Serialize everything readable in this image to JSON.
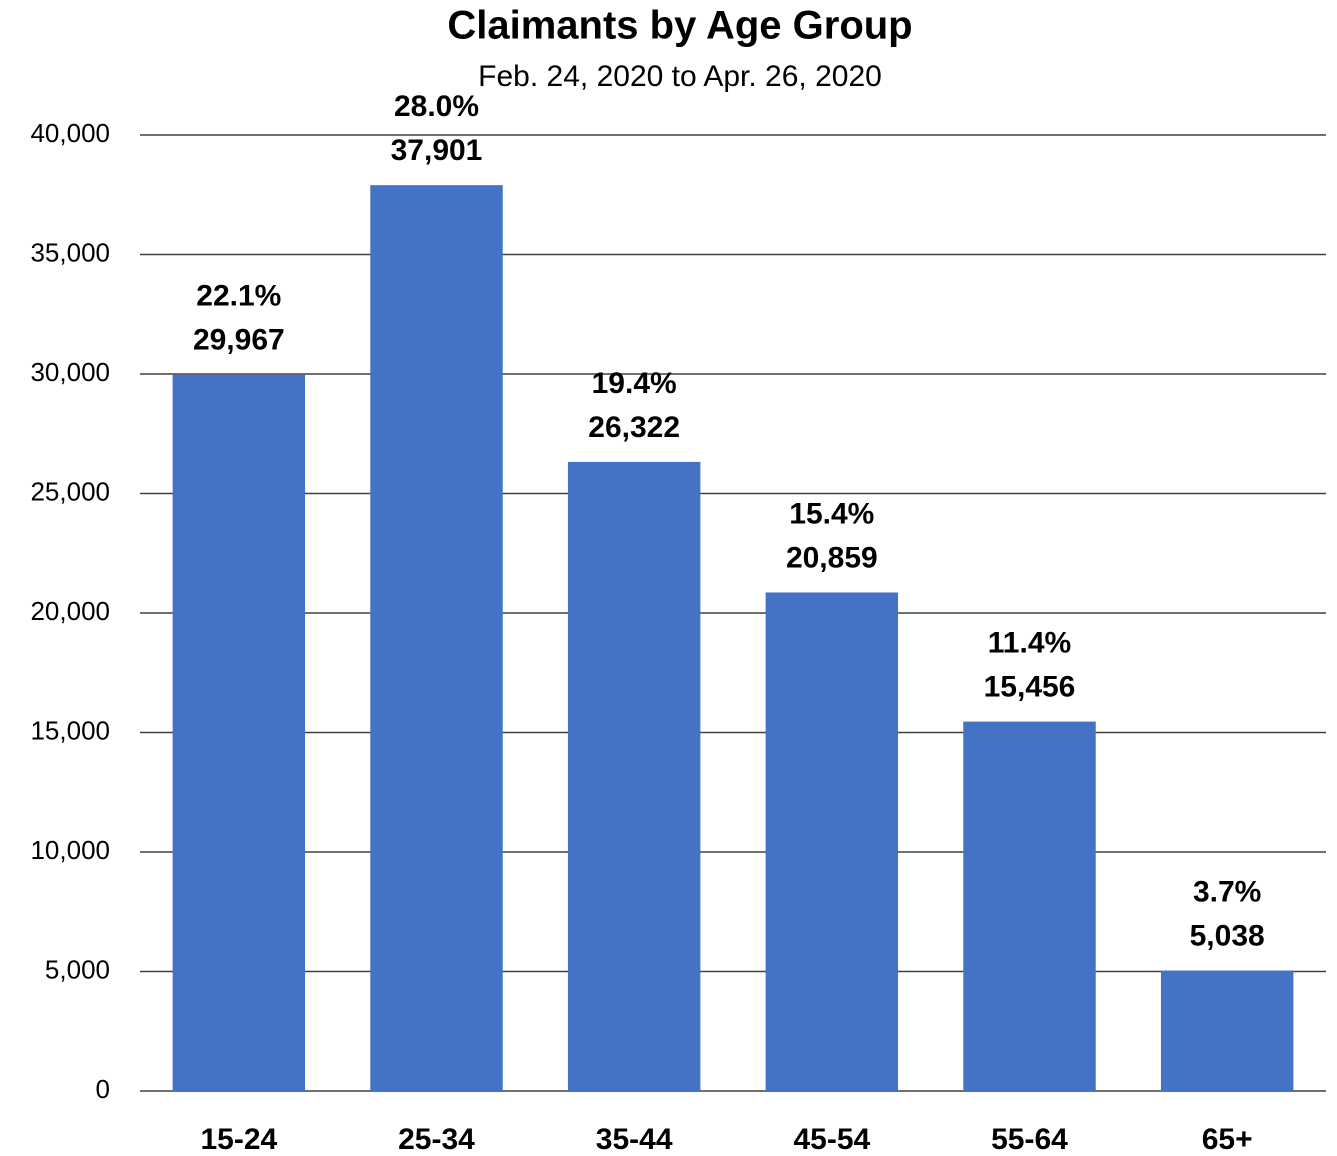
{
  "chart_data": {
    "type": "bar",
    "title": "Claimants by Age Group",
    "subtitle": "Feb. 24, 2020 to Apr. 26, 2020",
    "categories": [
      "15-24",
      "25-34",
      "35-44",
      "45-54",
      "55-64",
      "65+"
    ],
    "values": [
      29967,
      37901,
      26322,
      20859,
      15456,
      5038
    ],
    "value_labels": [
      "29,967",
      "37,901",
      "26,322",
      "20,859",
      "15,456",
      "5,038"
    ],
    "shares": [
      22.1,
      28.0,
      19.4,
      15.4,
      11.4,
      3.7
    ],
    "share_labels": [
      "22.1%",
      "28.0%",
      "19.4%",
      "15.4%",
      "11.4%",
      "3.7%"
    ],
    "color": "#4472c4",
    "ylim": [
      0,
      40000
    ],
    "yticks": [
      0,
      {
        "value": 5000,
        "label": "5,000"
      },
      {
        "value": 10000,
        "label": "10,000"
      },
      {
        "value": 15000,
        "label": "15,000"
      },
      {
        "value": 20000,
        "label": "20,000"
      },
      {
        "value": 25000,
        "label": "25,000"
      },
      {
        "value": 30000,
        "label": "30,000"
      },
      {
        "value": 35000,
        "label": "35,000"
      },
      {
        "value": 40000,
        "label": "40,000"
      }
    ],
    "grid": true
  }
}
